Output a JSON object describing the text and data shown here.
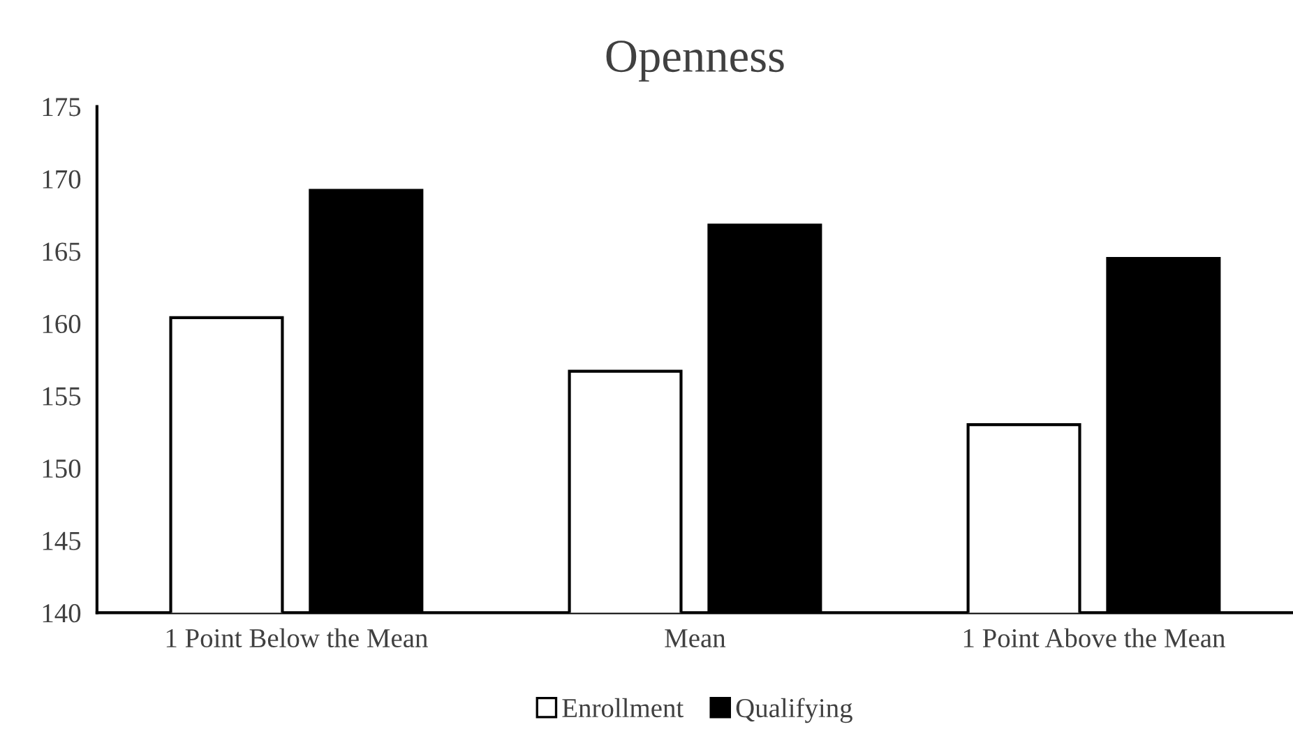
{
  "chart_data": {
    "type": "bar",
    "title": "Openness",
    "categories": [
      "1 Point Below the Mean",
      "Mean",
      "1 Point Above the Mean"
    ],
    "series": [
      {
        "name": "Enrollment",
        "color": "#ffffff",
        "values": [
          160.4,
          156.7,
          153.0
        ]
      },
      {
        "name": "Qualifying",
        "color": "#000000",
        "values": [
          169.2,
          166.8,
          164.5
        ]
      }
    ],
    "ylim": [
      140,
      175
    ],
    "yticks": [
      140,
      145,
      150,
      155,
      160,
      165,
      170,
      175
    ],
    "grid": false,
    "legend": "bottom"
  }
}
